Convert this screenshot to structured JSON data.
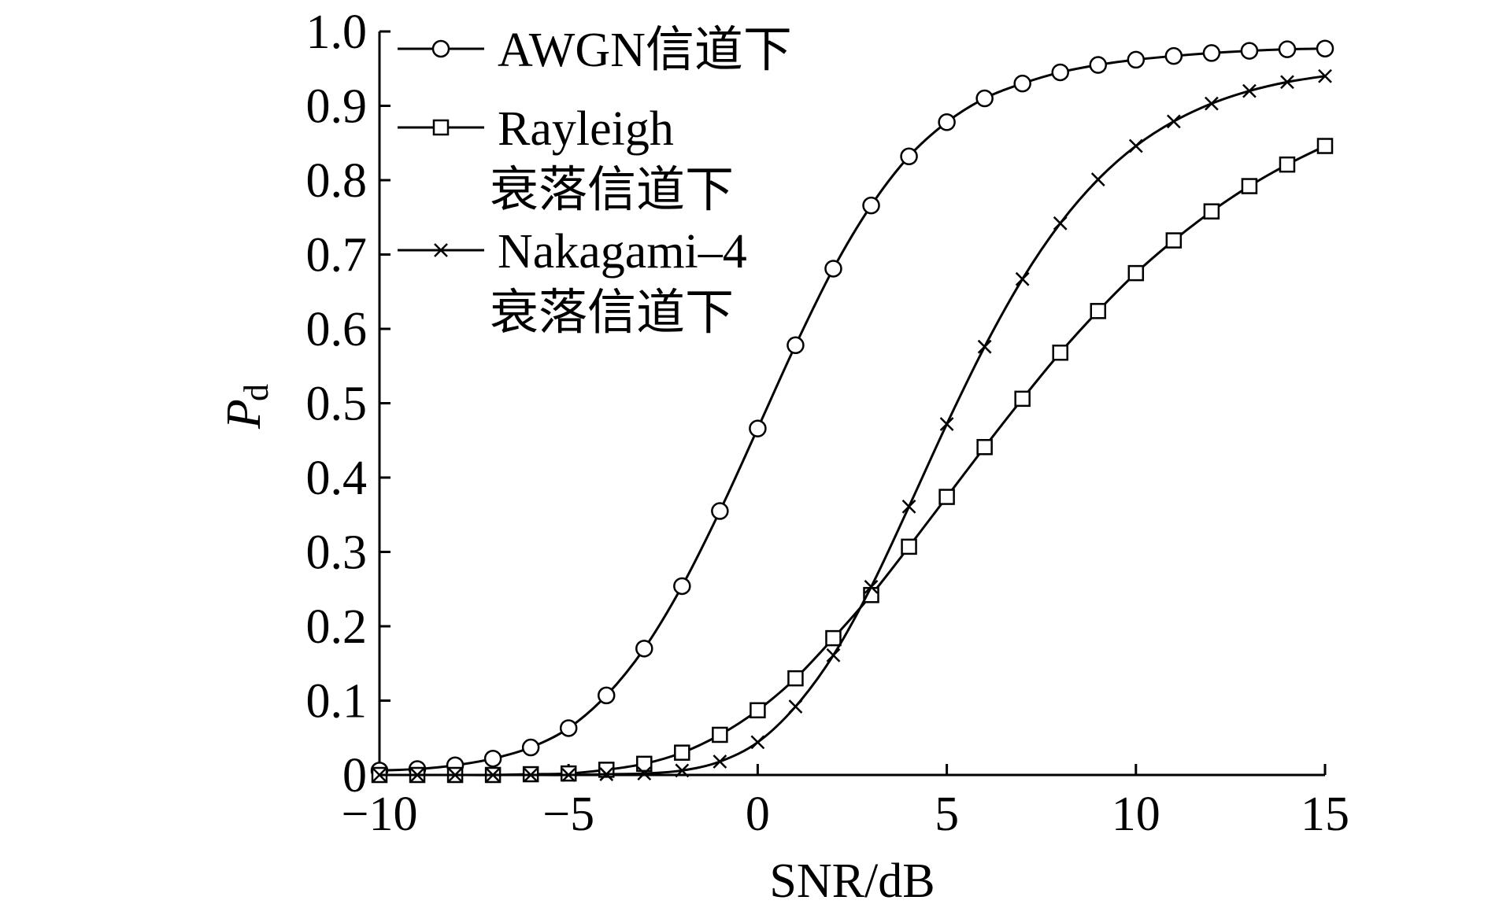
{
  "chart_data": {
    "type": "line",
    "xlabel": "SNR/dB",
    "ylabel_main": "P",
    "ylabel_sub": "d",
    "xlim": [
      -10,
      15
    ],
    "ylim": [
      0,
      1.0
    ],
    "x_ticks": [
      -10,
      -5,
      0,
      5,
      10,
      15
    ],
    "x_tick_labels": [
      "−10",
      "−5",
      "0",
      "5",
      "10",
      "15"
    ],
    "y_ticks": [
      0,
      0.1,
      0.2,
      0.3,
      0.4,
      0.5,
      0.6,
      0.7,
      0.8,
      0.9,
      1.0
    ],
    "y_tick_labels": [
      "0",
      "0.1",
      "0.2",
      "0.3",
      "0.4",
      "0.5",
      "0.6",
      "0.7",
      "0.8",
      "0.9",
      "1.0"
    ],
    "grid": false,
    "legend_position": "top-left",
    "x": [
      -10,
      -9,
      -8,
      -7,
      -6,
      -5,
      -4,
      -3,
      -2,
      -1,
      0,
      1,
      2,
      3,
      4,
      5,
      6,
      7,
      8,
      9,
      10,
      11,
      12,
      13,
      14,
      15
    ],
    "series": [
      {
        "name": "AWGN信道下",
        "legend_lines": [
          "AWGN信道下"
        ],
        "marker": "circle",
        "values": [
          0.006,
          0.008,
          0.013,
          0.022,
          0.037,
          0.063,
          0.107,
          0.17,
          0.254,
          0.355,
          0.466,
          0.578,
          0.681,
          0.766,
          0.832,
          0.878,
          0.91,
          0.93,
          0.945,
          0.955,
          0.962,
          0.967,
          0.971,
          0.974,
          0.976,
          0.977
        ]
      },
      {
        "name": "Rayleigh衰落信道下",
        "legend_lines": [
          "Rayleigh",
          "衰落信道下"
        ],
        "marker": "square",
        "values": [
          0.0,
          0.0,
          0.0,
          0.0,
          0.001,
          0.002,
          0.007,
          0.015,
          0.03,
          0.054,
          0.087,
          0.13,
          0.184,
          0.242,
          0.307,
          0.374,
          0.441,
          0.506,
          0.568,
          0.624,
          0.675,
          0.719,
          0.758,
          0.792,
          0.821,
          0.846
        ]
      },
      {
        "name": "Nakagami–4衰落信道下",
        "legend_lines": [
          "Nakagami–4",
          "衰落信道下"
        ],
        "marker": "x",
        "values": [
          0.0,
          0.0,
          0.0,
          0.0,
          0.0,
          0.0,
          0.001,
          0.002,
          0.006,
          0.018,
          0.044,
          0.092,
          0.161,
          0.253,
          0.361,
          0.472,
          0.576,
          0.667,
          0.742,
          0.801,
          0.846,
          0.879,
          0.903,
          0.92,
          0.932,
          0.94
        ]
      }
    ]
  }
}
